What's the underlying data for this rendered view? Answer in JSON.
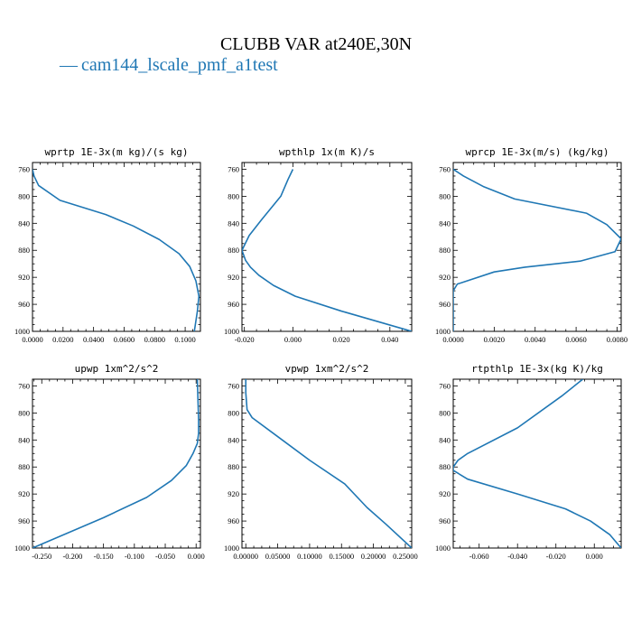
{
  "figure": {
    "title": "CLUBB VAR at240E,30N",
    "legend_label": "cam144_lscale_pmf_a1test",
    "legend_dash": "—",
    "line_color": "#1f77b4"
  },
  "chart_data": [
    {
      "type": "line",
      "title": "wprtp  1E-3x(m kg)/(s kg)",
      "xlim": [
        0.0,
        0.11
      ],
      "ylim": [
        1000,
        750
      ],
      "x_ticks": [
        0.0,
        0.02,
        0.04,
        0.06,
        0.08,
        0.1
      ],
      "x_tick_labels": [
        "0.0000",
        "0.0200",
        "0.0400",
        "0.0600",
        "0.0800",
        "0.1000"
      ],
      "y_ticks": [
        760,
        800,
        840,
        880,
        920,
        960,
        1000
      ],
      "y_tick_labels": [
        "760",
        "800",
        "840",
        "880",
        "920",
        "960",
        "1000"
      ],
      "series": [
        {
          "x": [
            0.0,
            0.001,
            0.004,
            0.018,
            0.048,
            0.066,
            0.083,
            0.096,
            0.103,
            0.107,
            0.109,
            0.108,
            0.106
          ],
          "y": [
            760,
            770,
            784,
            806,
            827,
            844,
            864,
            885,
            904,
            925,
            948,
            970,
            1000
          ]
        }
      ]
    },
    {
      "type": "line",
      "title": "wpthlp  1x(m K)/s",
      "xlim": [
        -0.021,
        0.049
      ],
      "ylim": [
        1000,
        750
      ],
      "x_ticks": [
        -0.02,
        0.0,
        0.02,
        0.04
      ],
      "x_tick_labels": [
        "-0.020",
        "0.000",
        "0.020",
        "0.040"
      ],
      "y_ticks": [
        760,
        800,
        840,
        880,
        920,
        960,
        1000
      ],
      "y_tick_labels": [
        "760",
        "800",
        "840",
        "880",
        "920",
        "960",
        "1000"
      ],
      "series": [
        {
          "x": [
            0.0,
            -0.002,
            -0.005,
            -0.013,
            -0.018,
            -0.021,
            -0.0195,
            -0.0175,
            -0.014,
            -0.008,
            0.001,
            0.02,
            0.049
          ],
          "y": [
            760,
            775,
            800,
            835,
            858,
            880,
            895,
            905,
            917,
            932,
            948,
            970,
            1000
          ]
        }
      ]
    },
    {
      "type": "line",
      "title": "wprcp  1E-3x(m/s) (kg/kg)",
      "xlim": [
        0.0,
        0.0082
      ],
      "ylim": [
        1000,
        750
      ],
      "x_ticks": [
        0.0,
        0.002,
        0.004,
        0.006,
        0.008
      ],
      "x_tick_labels": [
        "0.0000",
        "0.0020",
        "0.0040",
        "0.0060",
        "0.0080"
      ],
      "y_ticks": [
        760,
        800,
        840,
        880,
        920,
        960,
        1000
      ],
      "y_tick_labels": [
        "760",
        "800",
        "840",
        "880",
        "920",
        "960",
        "1000"
      ],
      "series": [
        {
          "x": [
            0.0,
            0.0005,
            0.0015,
            0.003,
            0.0065,
            0.0075,
            0.0082,
            0.0079,
            0.0062,
            0.0035,
            0.002,
            0.0002,
            0.0,
            0.0,
            0.0
          ],
          "y": [
            760,
            770,
            786,
            804,
            825,
            842,
            863,
            882,
            896,
            905,
            912,
            930,
            940,
            960,
            1000
          ]
        }
      ]
    },
    {
      "type": "line",
      "title": "upwp  1xm^2/s^2",
      "xlim": [
        -0.265,
        0.007
      ],
      "ylim": [
        1000,
        750
      ],
      "x_ticks": [
        -0.25,
        -0.2,
        -0.15,
        -0.1,
        -0.05,
        0.0
      ],
      "x_tick_labels": [
        "-0.250",
        "-0.200",
        "-0.150",
        "-0.100",
        "-0.050",
        "0.000"
      ],
      "y_ticks": [
        760,
        800,
        840,
        880,
        920,
        960,
        1000
      ],
      "y_tick_labels": [
        "760",
        "800",
        "840",
        "880",
        "920",
        "960",
        "1000"
      ],
      "series": [
        {
          "x": [
            0.002,
            0.003,
            0.004,
            0.004,
            0.002,
            -0.005,
            -0.016,
            -0.04,
            -0.08,
            -0.15,
            -0.265
          ],
          "y": [
            750,
            780,
            810,
            830,
            845,
            860,
            878,
            900,
            925,
            955,
            1000
          ]
        }
      ]
    },
    {
      "type": "line",
      "title": "vpwp  1xm^2/s^2",
      "xlim": [
        -0.006,
        0.26
      ],
      "ylim": [
        1000,
        750
      ],
      "x_ticks": [
        0.0,
        0.05,
        0.1,
        0.15,
        0.2,
        0.25
      ],
      "x_tick_labels": [
        "0.00000",
        "0.05000",
        "0.10000",
        "0.15000",
        "0.20000",
        "0.25000"
      ],
      "y_ticks": [
        760,
        800,
        840,
        880,
        920,
        960,
        1000
      ],
      "y_tick_labels": [
        "760",
        "800",
        "840",
        "880",
        "920",
        "960",
        "1000"
      ],
      "series": [
        {
          "x": [
            0.0,
            0.0,
            0.002,
            0.01,
            0.05,
            0.1,
            0.155,
            0.19,
            0.22,
            0.26
          ],
          "y": [
            750,
            770,
            795,
            807,
            835,
            870,
            905,
            940,
            965,
            1000
          ]
        }
      ]
    },
    {
      "type": "line",
      "title": "rtpthlp  1E-3x(kg K)/kg",
      "xlim": [
        -0.0735,
        0.014
      ],
      "ylim": [
        1000,
        750
      ],
      "x_ticks": [
        -0.06,
        -0.04,
        -0.02,
        0.0
      ],
      "x_tick_labels": [
        "-0.060",
        "-0.040",
        "-0.020",
        "0.000"
      ],
      "y_ticks": [
        760,
        800,
        840,
        880,
        920,
        960,
        1000
      ],
      "y_tick_labels": [
        "760",
        "800",
        "840",
        "880",
        "920",
        "960",
        "1000"
      ],
      "series": [
        {
          "x": [
            -0.006,
            -0.017,
            -0.04,
            -0.066,
            -0.071,
            -0.0735,
            -0.0735,
            -0.066,
            -0.04,
            -0.015,
            -0.002,
            0.008,
            0.014
          ],
          "y": [
            750,
            775,
            822,
            860,
            870,
            880,
            885,
            898,
            920,
            942,
            960,
            980,
            1000
          ]
        }
      ]
    }
  ]
}
